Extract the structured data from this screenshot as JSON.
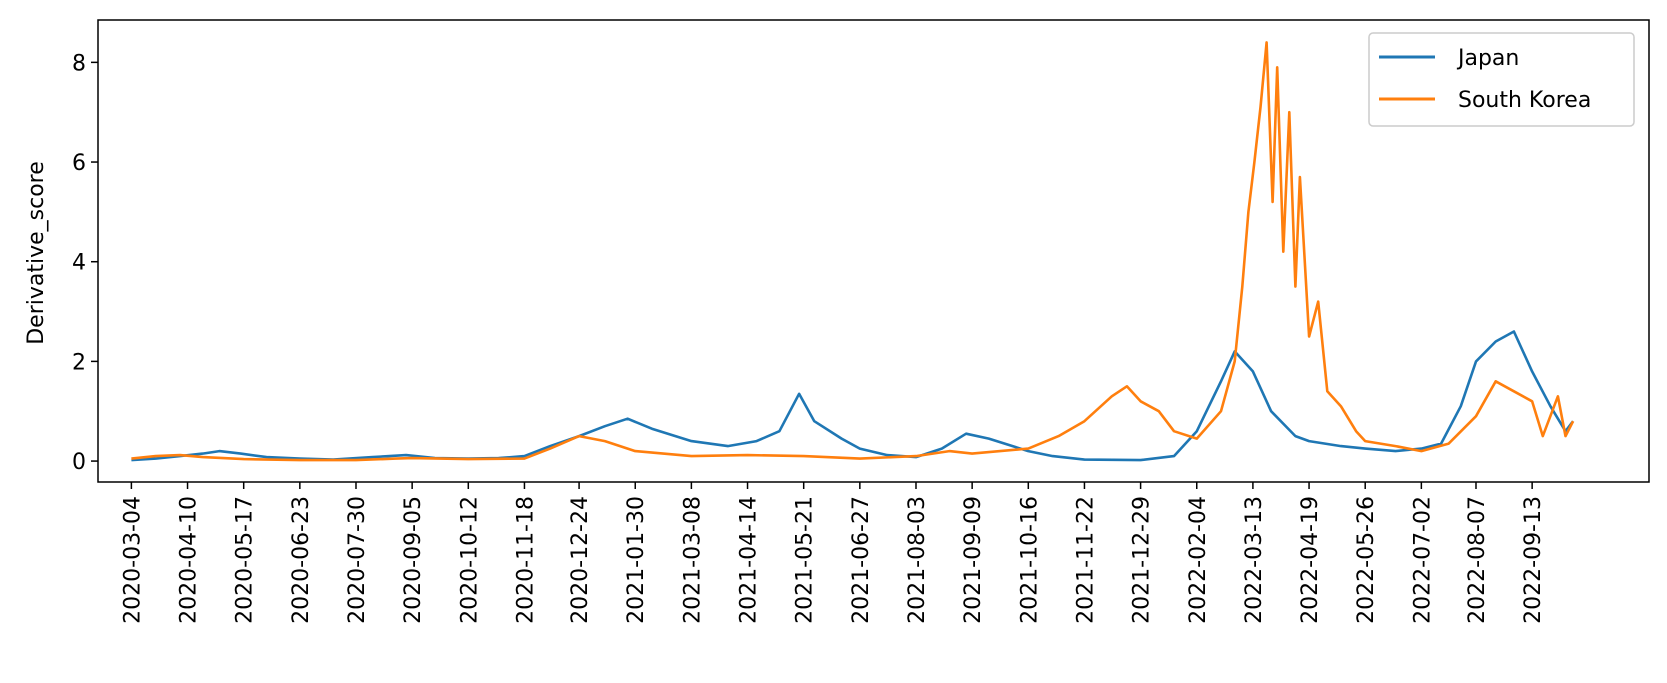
{
  "chart_data": {
    "type": "line",
    "title": "",
    "xlabel": "",
    "ylabel": "Derivative_score",
    "ylim": [
      -0.42,
      8.85
    ],
    "xlim": [
      "2020-02-11",
      "2022-11-29"
    ],
    "y_ticks": [
      0,
      2,
      4,
      6,
      8
    ],
    "x_ticks": [
      "2020-03-04",
      "2020-04-10",
      "2020-05-17",
      "2020-06-23",
      "2020-07-30",
      "2020-09-05",
      "2020-10-12",
      "2020-11-18",
      "2020-12-24",
      "2021-01-30",
      "2021-03-08",
      "2021-04-14",
      "2021-05-21",
      "2021-06-27",
      "2021-08-03",
      "2021-09-09",
      "2021-10-16",
      "2021-11-22",
      "2021-12-29",
      "2022-02-04",
      "2022-03-13",
      "2022-04-19",
      "2022-05-26",
      "2022-07-02",
      "2022-08-07",
      "2022-09-13"
    ],
    "x_tick_rotation": "vertical",
    "grid": false,
    "legend": {
      "placement": "top-right",
      "entries": [
        "Japan",
        "South Korea"
      ]
    },
    "series": [
      {
        "name": "Japan",
        "color": "#1f77b4",
        "points": [
          [
            "2020-03-04",
            0.02
          ],
          [
            "2020-03-20",
            0.05
          ],
          [
            "2020-04-05",
            0.1
          ],
          [
            "2020-04-20",
            0.15
          ],
          [
            "2020-05-01",
            0.2
          ],
          [
            "2020-05-15",
            0.15
          ],
          [
            "2020-06-01",
            0.08
          ],
          [
            "2020-06-23",
            0.05
          ],
          [
            "2020-07-15",
            0.03
          ],
          [
            "2020-08-10",
            0.08
          ],
          [
            "2020-09-01",
            0.12
          ],
          [
            "2020-09-20",
            0.06
          ],
          [
            "2020-10-12",
            0.05
          ],
          [
            "2020-11-01",
            0.06
          ],
          [
            "2020-11-18",
            0.1
          ],
          [
            "2020-12-05",
            0.3
          ],
          [
            "2020-12-24",
            0.5
          ],
          [
            "2021-01-10",
            0.7
          ],
          [
            "2021-01-25",
            0.85
          ],
          [
            "2021-02-10",
            0.65
          ],
          [
            "2021-03-08",
            0.4
          ],
          [
            "2021-04-01",
            0.3
          ],
          [
            "2021-04-20",
            0.4
          ],
          [
            "2021-05-05",
            0.6
          ],
          [
            "2021-05-18",
            1.35
          ],
          [
            "2021-05-28",
            0.8
          ],
          [
            "2021-06-15",
            0.45
          ],
          [
            "2021-06-27",
            0.25
          ],
          [
            "2021-07-15",
            0.12
          ],
          [
            "2021-08-03",
            0.08
          ],
          [
            "2021-08-20",
            0.25
          ],
          [
            "2021-09-05",
            0.55
          ],
          [
            "2021-09-20",
            0.45
          ],
          [
            "2021-10-16",
            0.2
          ],
          [
            "2021-11-01",
            0.1
          ],
          [
            "2021-11-22",
            0.03
          ],
          [
            "2021-12-29",
            0.02
          ],
          [
            "2022-01-20",
            0.1
          ],
          [
            "2022-02-04",
            0.6
          ],
          [
            "2022-02-20",
            1.6
          ],
          [
            "2022-03-01",
            2.2
          ],
          [
            "2022-03-13",
            1.8
          ],
          [
            "2022-03-25",
            1.0
          ],
          [
            "2022-04-10",
            0.5
          ],
          [
            "2022-04-19",
            0.4
          ],
          [
            "2022-05-10",
            0.3
          ],
          [
            "2022-05-26",
            0.25
          ],
          [
            "2022-06-15",
            0.2
          ],
          [
            "2022-07-02",
            0.25
          ],
          [
            "2022-07-15",
            0.35
          ],
          [
            "2022-07-28",
            1.1
          ],
          [
            "2022-08-07",
            2.0
          ],
          [
            "2022-08-20",
            2.4
          ],
          [
            "2022-09-01",
            2.6
          ],
          [
            "2022-09-13",
            1.8
          ],
          [
            "2022-09-25",
            1.1
          ],
          [
            "2022-10-05",
            0.6
          ],
          [
            "2022-10-10",
            0.8
          ]
        ]
      },
      {
        "name": "South Korea",
        "color": "#ff7f0e",
        "points": [
          [
            "2020-03-04",
            0.05
          ],
          [
            "2020-03-20",
            0.1
          ],
          [
            "2020-04-05",
            0.12
          ],
          [
            "2020-04-20",
            0.08
          ],
          [
            "2020-05-17",
            0.04
          ],
          [
            "2020-06-23",
            0.02
          ],
          [
            "2020-07-30",
            0.02
          ],
          [
            "2020-08-25",
            0.05
          ],
          [
            "2020-09-05",
            0.06
          ],
          [
            "2020-10-12",
            0.04
          ],
          [
            "2020-11-18",
            0.05
          ],
          [
            "2020-12-05",
            0.25
          ],
          [
            "2020-12-24",
            0.5
          ],
          [
            "2021-01-10",
            0.4
          ],
          [
            "2021-01-30",
            0.2
          ],
          [
            "2021-03-08",
            0.1
          ],
          [
            "2021-04-14",
            0.12
          ],
          [
            "2021-05-21",
            0.1
          ],
          [
            "2021-06-27",
            0.05
          ],
          [
            "2021-08-03",
            0.1
          ],
          [
            "2021-08-25",
            0.2
          ],
          [
            "2021-09-09",
            0.15
          ],
          [
            "2021-10-16",
            0.25
          ],
          [
            "2021-11-05",
            0.5
          ],
          [
            "2021-11-22",
            0.8
          ],
          [
            "2021-12-10",
            1.3
          ],
          [
            "2021-12-20",
            1.5
          ],
          [
            "2021-12-29",
            1.2
          ],
          [
            "2022-01-10",
            1.0
          ],
          [
            "2022-01-20",
            0.6
          ],
          [
            "2022-02-04",
            0.45
          ],
          [
            "2022-02-20",
            1.0
          ],
          [
            "2022-03-01",
            2.0
          ],
          [
            "2022-03-06",
            3.5
          ],
          [
            "2022-03-10",
            5.0
          ],
          [
            "2022-03-14",
            6.0
          ],
          [
            "2022-03-18",
            7.1
          ],
          [
            "2022-03-22",
            8.4
          ],
          [
            "2022-03-26",
            5.2
          ],
          [
            "2022-03-29",
            7.9
          ],
          [
            "2022-04-02",
            4.2
          ],
          [
            "2022-04-06",
            7.0
          ],
          [
            "2022-04-10",
            3.5
          ],
          [
            "2022-04-13",
            5.7
          ],
          [
            "2022-04-19",
            2.5
          ],
          [
            "2022-04-25",
            3.2
          ],
          [
            "2022-05-01",
            1.4
          ],
          [
            "2022-05-10",
            1.1
          ],
          [
            "2022-05-20",
            0.6
          ],
          [
            "2022-05-26",
            0.4
          ],
          [
            "2022-06-15",
            0.3
          ],
          [
            "2022-07-02",
            0.2
          ],
          [
            "2022-07-20",
            0.35
          ],
          [
            "2022-08-07",
            0.9
          ],
          [
            "2022-08-20",
            1.6
          ],
          [
            "2022-09-01",
            1.4
          ],
          [
            "2022-09-13",
            1.2
          ],
          [
            "2022-09-20",
            0.5
          ],
          [
            "2022-09-30",
            1.3
          ],
          [
            "2022-10-05",
            0.5
          ],
          [
            "2022-10-10",
            0.8
          ]
        ]
      }
    ]
  }
}
